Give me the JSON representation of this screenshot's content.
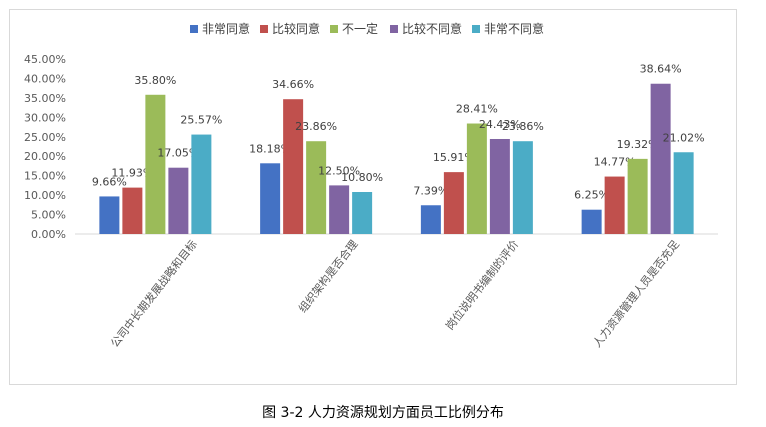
{
  "chart_data": {
    "type": "bar",
    "categories": [
      "公司中长期发展战略和目标",
      "组织架构是否合理",
      "岗位说明书编制的评价",
      "人力资源管理人员是否充足"
    ],
    "series": [
      {
        "name": "非常同意",
        "color": "#4472C4",
        "values": [
          9.66,
          18.18,
          7.39,
          6.25
        ],
        "labels": [
          "9.66%",
          "18.18%",
          "7.39%",
          "6.25%"
        ]
      },
      {
        "name": "比较同意",
        "color": "#C0504D",
        "values": [
          11.93,
          34.66,
          15.91,
          14.77
        ],
        "labels": [
          "11.93%",
          "34.66%",
          "15.91%",
          "14.77%"
        ]
      },
      {
        "name": "不一定",
        "color": "#9BBB59",
        "values": [
          35.8,
          23.86,
          28.41,
          19.32
        ],
        "labels": [
          "35.80%",
          "23.86%",
          "28.41%",
          "19.32%"
        ]
      },
      {
        "name": "比较不同意",
        "color": "#8064A2",
        "values": [
          17.05,
          12.5,
          24.43,
          38.64
        ],
        "labels": [
          "17.05%",
          "12.50%",
          "24.43%",
          "38.64%"
        ]
      },
      {
        "name": "非常不同意",
        "color": "#4BACC6",
        "values": [
          25.57,
          10.8,
          23.86,
          21.02
        ],
        "labels": [
          "25.57%",
          "10.80%",
          "23.86%",
          "21.02%"
        ]
      }
    ],
    "yticks": [
      "0.00%",
      "5.00%",
      "10.00%",
      "15.00%",
      "20.00%",
      "25.00%",
      "30.00%",
      "35.00%",
      "40.00%",
      "45.00%"
    ],
    "ylim": [
      0,
      45
    ],
    "grid": false,
    "legend_position": "top"
  },
  "caption": "图 3-2 人力资源规划方面员工比例分布"
}
